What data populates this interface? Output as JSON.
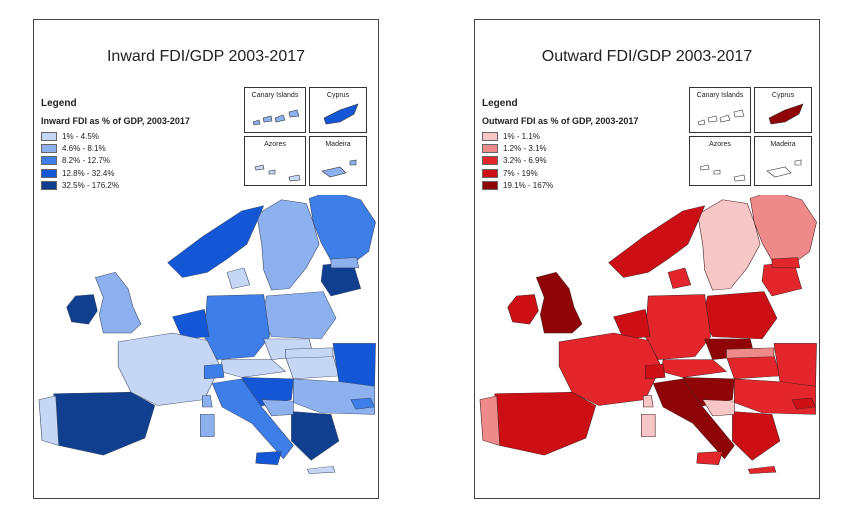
{
  "maps": [
    {
      "title": "Inward FDI/GDP 2003-2017",
      "legend_heading": "Legend",
      "legend_subtitle": "Inward FDI as % of GDP, 2003-2017",
      "classes": [
        {
          "label": "1% - 4.5%",
          "color": "#c6d6f5"
        },
        {
          "label": "4.6% - 8.1%",
          "color": "#8db1ee"
        },
        {
          "label": "8.2% - 12.7%",
          "color": "#3e7ee8"
        },
        {
          "label": "12.8% - 32.4%",
          "color": "#1457d6"
        },
        {
          "label": "32.5% - 176.2%",
          "color": "#103f8f"
        }
      ],
      "insets": [
        "Canary Islands",
        "Cyprus",
        "Azores",
        "Madeira"
      ],
      "region_fill_shades": [
        2,
        1,
        3,
        4,
        1,
        0,
        4,
        1,
        2,
        3,
        0,
        0,
        0,
        0,
        3,
        2,
        3,
        2,
        1,
        4,
        4,
        0,
        3,
        1,
        2,
        1,
        0,
        1,
        0,
        1
      ],
      "inset_shades": {
        "canary": 1,
        "cyprus": 3,
        "azores": 0,
        "madeira": 1
      },
      "border_color": "#3b4a66"
    },
    {
      "title": "Outward FDI/GDP 2003-2017",
      "legend_heading": "Legend",
      "legend_subtitle": "Outward FDI as % of GDP, 2003-2017",
      "classes": [
        {
          "label": "1% - 1.1%",
          "color": "#f7c6c6"
        },
        {
          "label": "1.2% - 3.1%",
          "color": "#ef8a8a"
        },
        {
          "label": "3.2% - 6.9%",
          "color": "#e3262b"
        },
        {
          "label": "7% - 19%",
          "color": "#cc0f14"
        },
        {
          "label": "19.1% - 167%",
          "color": "#8f0407"
        }
      ],
      "insets": [
        "Canary Islands",
        "Cyprus",
        "Azores",
        "Madeira"
      ],
      "region_fill_shades": [
        1,
        0,
        3,
        3,
        4,
        2,
        2,
        3,
        2,
        3,
        2,
        4,
        2,
        2,
        2,
        3,
        4,
        4,
        2,
        3,
        3,
        1,
        2,
        0,
        3,
        2,
        1,
        0,
        2,
        0
      ],
      "inset_shades": {
        "canary": -1,
        "cyprus": 4,
        "azores": -1,
        "madeira": -1
      },
      "border_color": "#4a2020"
    }
  ]
}
